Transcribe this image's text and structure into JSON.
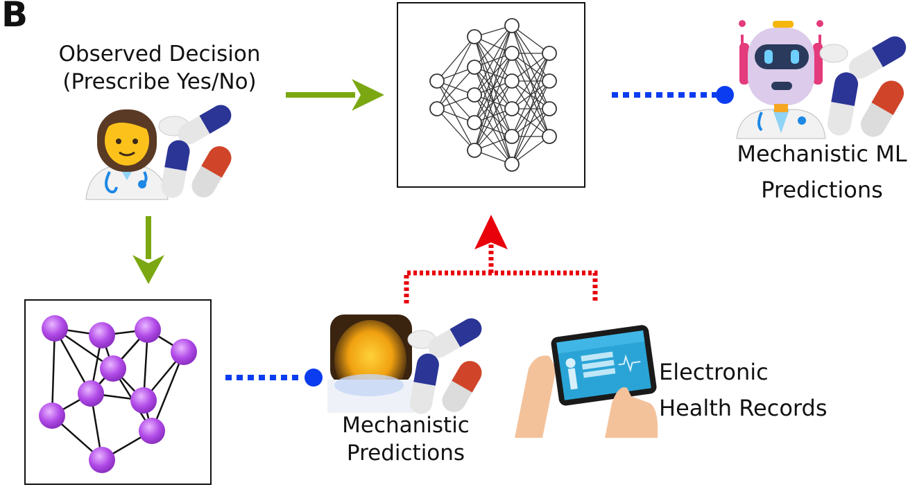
{
  "panel_letter": "B",
  "labels": {
    "observed_decision_line1": "Observed Decision",
    "observed_decision_line2": "(Prescribe Yes/No)",
    "mechanistic_ml_line1": "Mechanistic ML",
    "mechanistic_ml_line2": "Predictions",
    "mechanistic_line1": "Mechanistic",
    "mechanistic_line2": "Predictions",
    "ehr_line1": "Electronic",
    "ehr_line2": "Health Records"
  },
  "icons": {
    "doctor": "doctor-icon",
    "pills": "pills-icon",
    "neural_network": "neural-network-icon",
    "graph_network": "graph-network-icon",
    "robot": "robot-icon",
    "tablet": "tablet-icon",
    "blurred_person": "blurred-person-icon"
  },
  "colors": {
    "green_arrow": "#7ba812",
    "red_arrow": "#e8000b",
    "blue_connector": "#0b3cf0",
    "node_purple": "#b24be8",
    "pill_blue": "#2b3596",
    "pill_red": "#d0452a"
  }
}
